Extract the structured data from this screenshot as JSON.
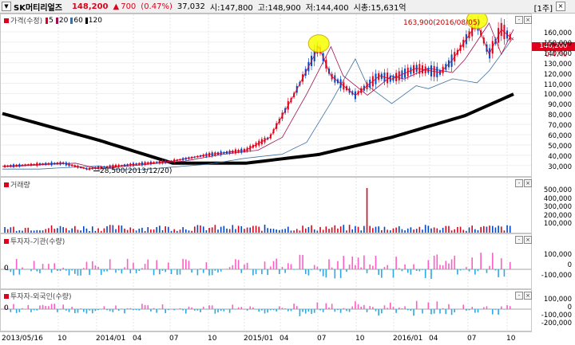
{
  "header": {
    "stock_name": "SK머티리얼즈",
    "price": "148,200",
    "change_icon": "triangle-up-icon",
    "change": "700",
    "change_pct": "(0.47%)",
    "volume": "37,032",
    "open": "시:147,800",
    "high": "고:148,900",
    "low": "저:144,400",
    "market_cap": "시총:15,631억",
    "period_button": "[1주]",
    "colors": {
      "up": "#e0001b",
      "down": "#0046c8"
    }
  },
  "price_panel": {
    "legend_title": "가격(수정)",
    "ma_legend": [
      {
        "label": "5",
        "color": "#e0001b"
      },
      {
        "label": "20",
        "color": "#a01050"
      },
      {
        "label": "60",
        "color": "#3c6ea0"
      },
      {
        "label": "120",
        "color": "#000000"
      }
    ],
    "high_note": "163,900(2016/08/05)",
    "low_note": "28,500(2013/12/20)",
    "current_label": "148,200",
    "current_pct": "0.47%",
    "y_ticks": [
      "160,000",
      "150,000",
      "140,000",
      "130,000",
      "120,000",
      "110,000",
      "100,000",
      "90,000",
      "80,000",
      "70,000",
      "60,000",
      "50,000",
      "40,000",
      "30,000"
    ]
  },
  "volume_panel": {
    "title": "거래량",
    "y_ticks": [
      "500,000",
      "400,000",
      "300,000",
      "200,000",
      "100,000"
    ]
  },
  "inst_panel": {
    "title": "투자자-기관(수량)",
    "y_ticks": [
      "100,000",
      "0",
      "-100,000"
    ]
  },
  "foreign_panel": {
    "title": "투자자-외국인(수량)",
    "y_ticks": [
      "100,000",
      "0",
      "-100,000",
      "-200,000"
    ]
  },
  "x_axis": [
    "2013/05/16",
    "10",
    "2014/01",
    "04",
    "07",
    "10",
    "2015/01",
    "04",
    "07",
    "10",
    "2016/01",
    "04",
    "07",
    "10"
  ],
  "chart_data": [
    {
      "type": "line",
      "title": "가격(수정)",
      "ylim": [
        22000,
        172000
      ],
      "series": [
        {
          "name": "가격(수정)",
          "x": [
            "2013/05",
            "2013/08",
            "2013/10",
            "2013/12",
            "2014/01",
            "2014/04",
            "2014/07",
            "2014/10",
            "2015/01",
            "2015/03",
            "2015/05",
            "2015/07",
            "2015/08",
            "2015/10",
            "2015/12",
            "2016/01",
            "2016/03",
            "2016/05",
            "2016/06",
            "2016/08",
            "2016/09",
            "2016/10",
            "2016/11"
          ],
          "values": [
            31000,
            33000,
            34000,
            28500,
            30000,
            33000,
            36000,
            42000,
            46000,
            58000,
            98000,
            142000,
            115000,
            97000,
            115000,
            112000,
            122000,
            118000,
            130000,
            163900,
            135000,
            158000,
            148200
          ]
        },
        {
          "name": "120",
          "x": [
            "2013/05",
            "2014/01",
            "2014/07",
            "2015/01",
            "2015/07",
            "2016/01",
            "2016/07",
            "2016/11"
          ],
          "values": [
            80000,
            55000,
            34000,
            34000,
            42000,
            58000,
            78000,
            98000
          ]
        }
      ]
    },
    {
      "type": "bar",
      "title": "거래량",
      "ylim": [
        0,
        600000
      ],
      "peak": {
        "x": "2015/11",
        "value": 520000
      },
      "typical_range": [
        5000,
        70000
      ]
    },
    {
      "type": "bar",
      "title": "투자자-기관(수량)",
      "ylim": [
        -150000,
        180000
      ]
    },
    {
      "type": "bar",
      "title": "투자자-외국인(수량)",
      "ylim": [
        -250000,
        180000
      ]
    }
  ]
}
